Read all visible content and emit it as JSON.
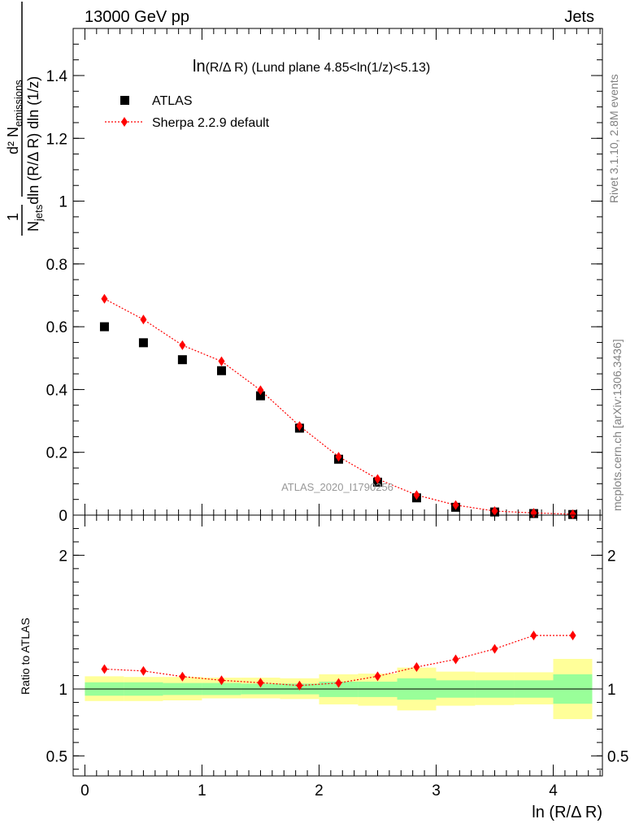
{
  "header": {
    "left": "13000 GeV pp",
    "right": "Jets"
  },
  "plot_title": {
    "prefix": "ln",
    "variable": "(R/Δ R)",
    "suffix": " (Lund plane 4.85<ln(1/z)<5.13)"
  },
  "side_labels": {
    "rivet": "Rivet 3.1.10,  2.8M events",
    "mcplots": "mcplots.cern.ch [arXiv:1306.3436]"
  },
  "watermark": "ATLAS_2020_I1790256",
  "y_axis_top": {
    "numerator_one": "1",
    "numerator": "d² N",
    "numerator_sub": "emissions",
    "denominator": "N",
    "denominator_sub": "jets",
    "denominator_rest": "dln (R/Δ R) dln (1/z)"
  },
  "y_axis_bottom": "Ratio to ATLAS",
  "x_axis_label": "ln (R/Δ R)",
  "chart_data": [
    {
      "type": "scatter",
      "panel": "main",
      "xlim": [
        -0.1,
        4.42
      ],
      "ylim": [
        0,
        1.55
      ],
      "x_ticks": [
        0,
        1,
        2,
        3,
        4
      ],
      "y_ticks": [
        0,
        0.2,
        0.4,
        0.6,
        0.8,
        1,
        1.2,
        1.4
      ],
      "y_tick_labels": [
        "0",
        "0.2",
        "0.4",
        "0.6",
        "0.8",
        "1",
        "1.2",
        "1.4"
      ],
      "legend_position": "top-left",
      "series": [
        {
          "name": "ATLAS",
          "marker": "square",
          "color": "#000000",
          "x": [
            0.167,
            0.5,
            0.833,
            1.167,
            1.5,
            1.833,
            2.167,
            2.5,
            2.833,
            3.167,
            3.5,
            3.833,
            4.167
          ],
          "y": [
            0.6,
            0.549,
            0.495,
            0.46,
            0.38,
            0.277,
            0.178,
            0.105,
            0.055,
            0.025,
            0.01,
            0.005,
            0.002
          ]
        },
        {
          "name": "Sherpa 2.2.9 default",
          "marker": "diamond",
          "line": "dotted",
          "color": "#ff0000",
          "x": [
            0.167,
            0.5,
            0.833,
            1.167,
            1.5,
            1.833,
            2.167,
            2.5,
            2.833,
            3.167,
            3.5,
            3.833,
            4.167
          ],
          "y": [
            0.689,
            0.623,
            0.541,
            0.49,
            0.398,
            0.284,
            0.186,
            0.115,
            0.064,
            0.032,
            0.013,
            0.007,
            0.003
          ]
        }
      ]
    },
    {
      "type": "scatter",
      "panel": "ratio",
      "xlim": [
        -0.1,
        4.42
      ],
      "ylim": [
        0.35,
        2.3
      ],
      "x_ticks": [
        0,
        1,
        2,
        3,
        4
      ],
      "x_tick_labels": [
        "0",
        "1",
        "2",
        "3",
        "4"
      ],
      "y_ticks": [
        0.5,
        1,
        2
      ],
      "y_tick_labels": [
        "0.5",
        "1",
        "2"
      ],
      "bin_edges": [
        0,
        0.333,
        0.667,
        1,
        1.333,
        1.667,
        2,
        2.333,
        2.667,
        3,
        3.333,
        3.667,
        4,
        4.333
      ],
      "stat_band_green": {
        "low": [
          0.95,
          0.95,
          0.955,
          0.955,
          0.96,
          0.96,
          0.94,
          0.94,
          0.92,
          0.935,
          0.935,
          0.935,
          0.89
        ],
        "high": [
          1.05,
          1.05,
          1.045,
          1.045,
          1.04,
          1.04,
          1.055,
          1.055,
          1.08,
          1.065,
          1.065,
          1.065,
          1.11
        ]
      },
      "total_band_yellow": {
        "low": [
          0.91,
          0.91,
          0.915,
          0.93,
          0.93,
          0.925,
          0.885,
          0.875,
          0.84,
          0.875,
          0.88,
          0.885,
          0.775
        ],
        "high": [
          1.095,
          1.09,
          1.09,
          1.085,
          1.085,
          1.08,
          1.11,
          1.115,
          1.16,
          1.13,
          1.125,
          1.125,
          1.225
        ]
      },
      "series": [
        {
          "name": "Sherpa 2.2.9 default",
          "marker": "diamond",
          "line": "dotted",
          "color": "#ff0000",
          "x": [
            0.167,
            0.5,
            0.833,
            1.167,
            1.5,
            1.833,
            2.167,
            2.5,
            2.833,
            3.167,
            3.5,
            3.833,
            4.167
          ],
          "y": [
            1.149,
            1.135,
            1.093,
            1.065,
            1.047,
            1.026,
            1.045,
            1.095,
            1.164,
            1.222,
            1.3,
            1.4,
            1.4
          ]
        }
      ],
      "reference_line": 1
    }
  ]
}
